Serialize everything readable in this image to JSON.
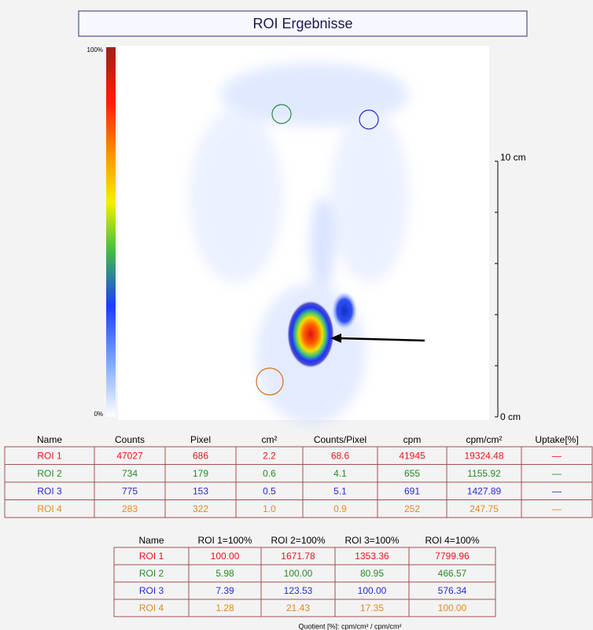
{
  "title": "ROI Ergebnisse",
  "colorbar": {
    "top_label": "100%",
    "bottom_label": "0%"
  },
  "scale": {
    "top_label": "10 cm",
    "bottom_label": "0 cm"
  },
  "table1": {
    "header": [
      "Name",
      "Counts",
      "Pixel",
      "cm²",
      "Counts/Pixel",
      "cpm",
      "cpm/cm²",
      "Uptake[%]"
    ],
    "rows": [
      {
        "color": "#e8141c",
        "cells": [
          "ROI 1",
          "47027",
          "686",
          "2.2",
          "68.6",
          "41945",
          "19324.48",
          "—"
        ]
      },
      {
        "color": "#2a8a2a",
        "cells": [
          "ROI 2",
          "734",
          "179",
          "0.6",
          "4.1",
          "655",
          "1155.92",
          "—"
        ]
      },
      {
        "color": "#2a2ad0",
        "cells": [
          "ROI 3",
          "775",
          "153",
          "0.5",
          "5.1",
          "691",
          "1427.89",
          "—"
        ]
      },
      {
        "color": "#e08a20",
        "cells": [
          "ROI 4",
          "283",
          "322",
          "1.0",
          "0.9",
          "252",
          "247.75",
          "—"
        ]
      }
    ]
  },
  "table2": {
    "header": [
      "Name",
      "ROI 1=100%",
      "ROI 2=100%",
      "ROI 3=100%",
      "ROI 4=100%"
    ],
    "rows": [
      {
        "color": "#e8141c",
        "cells": [
          "ROI 1",
          "100.00",
          "1671.78",
          "1353.36",
          "7799.96"
        ]
      },
      {
        "color": "#2a8a2a",
        "cells": [
          "ROI 2",
          "5.98",
          "100.00",
          "80.95",
          "466.57"
        ]
      },
      {
        "color": "#2a2ad0",
        "cells": [
          "ROI 3",
          "7.39",
          "123.53",
          "100.00",
          "576.34"
        ]
      },
      {
        "color": "#e08a20",
        "cells": [
          "ROI 4",
          "1.28",
          "21.43",
          "17.35",
          "100.00"
        ]
      }
    ]
  },
  "footnote": "Quotient [%]: cpm/cm² / cpm/cm²"
}
